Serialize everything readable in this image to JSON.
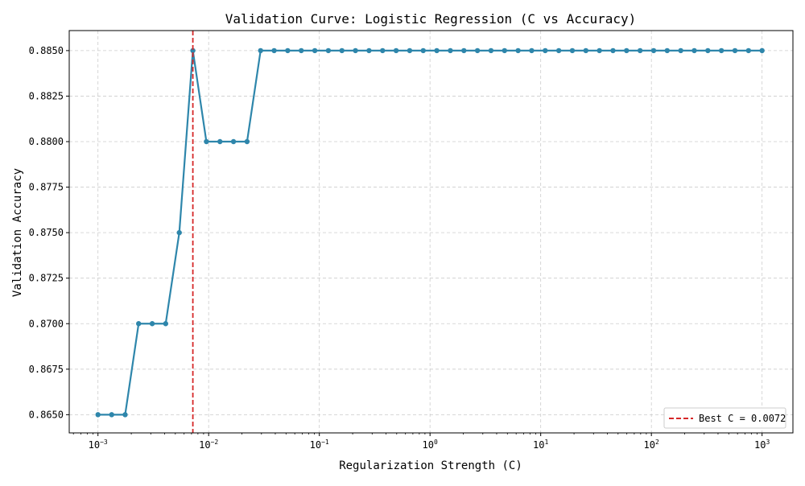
{
  "chart_data": {
    "type": "line",
    "title": "Validation Curve: Logistic Regression (C vs Accuracy)",
    "xlabel": "Regularization Strength (C)",
    "ylabel": "Validation Accuracy",
    "x_scale": "log",
    "xlim": [
      0.00055,
      1900
    ],
    "ylim": [
      0.864,
      0.8861
    ],
    "grid": true,
    "grid_style": "dashed",
    "legend_position": "bottom-right",
    "x_ticks": [
      {
        "value": 0.001,
        "mantissa": "10",
        "exponent": "−3"
      },
      {
        "value": 0.01,
        "mantissa": "10",
        "exponent": "−2"
      },
      {
        "value": 0.1,
        "mantissa": "10",
        "exponent": "−1"
      },
      {
        "value": 1,
        "mantissa": "10",
        "exponent": "0"
      },
      {
        "value": 10,
        "mantissa": "10",
        "exponent": "1"
      },
      {
        "value": 100,
        "mantissa": "10",
        "exponent": "2"
      },
      {
        "value": 1000,
        "mantissa": "10",
        "exponent": "3"
      }
    ],
    "y_ticks": [
      "0.8650",
      "0.8675",
      "0.8700",
      "0.8725",
      "0.8750",
      "0.8775",
      "0.8800",
      "0.8825",
      "0.8850"
    ],
    "series": [
      {
        "color": "#2e86ab",
        "x": [
          0.001,
          0.00133,
          0.00176,
          0.00233,
          0.00309,
          0.00409,
          0.00543,
          0.0072,
          0.00954,
          0.01265,
          0.01677,
          0.02223,
          0.02947,
          0.03907,
          0.05179,
          0.06866,
          0.09103,
          0.12068,
          0.15999,
          0.2121,
          0.28118,
          0.37276,
          0.49417,
          0.65513,
          0.86851,
          1.1514,
          1.52642,
          2.02359,
          2.6827,
          3.55648,
          4.71487,
          6.25055,
          8.28643,
          10.9854,
          14.5635,
          19.307,
          25.5955,
          33.9322,
          44.9843,
          59.6362,
          79.0604,
          104.811,
          138.95,
          184.207,
          244.205,
          323.746,
          429.193,
          568.987,
          754.312,
          1000
        ],
        "y": [
          0.865,
          0.865,
          0.865,
          0.87,
          0.87,
          0.87,
          0.875,
          0.885,
          0.88,
          0.88,
          0.88,
          0.88,
          0.885,
          0.885,
          0.885,
          0.885,
          0.885,
          0.885,
          0.885,
          0.885,
          0.885,
          0.885,
          0.885,
          0.885,
          0.885,
          0.885,
          0.885,
          0.885,
          0.885,
          0.885,
          0.885,
          0.885,
          0.885,
          0.885,
          0.885,
          0.885,
          0.885,
          0.885,
          0.885,
          0.885,
          0.885,
          0.885,
          0.885,
          0.885,
          0.885,
          0.885,
          0.885,
          0.885,
          0.885,
          0.885
        ]
      }
    ],
    "reference_line": {
      "x": 0.0072,
      "color": "#d62728",
      "style": "dashed",
      "legend_label": "Best C = 0.0072"
    }
  }
}
